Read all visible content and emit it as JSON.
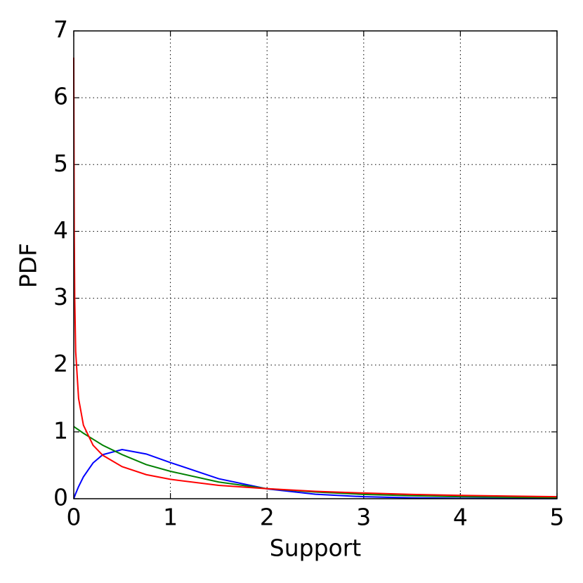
{
  "chart_data": {
    "type": "line",
    "x_label": "Support",
    "y_label": "PDF",
    "x": [
      0,
      0.005,
      0.01,
      0.02,
      0.05,
      0.1,
      0.2,
      0.3,
      0.5,
      0.75,
      1,
      1.5,
      2,
      2.5,
      3,
      3.5,
      4,
      4.5,
      5
    ],
    "series": [
      {
        "color": "#0000ff",
        "values": [
          0,
          0.0199,
          0.0392,
          0.0769,
          0.181,
          0.327,
          0.536,
          0.659,
          0.736,
          0.669,
          0.541,
          0.299,
          0.147,
          0.067,
          0.03,
          0.013,
          0.005,
          0.002,
          0.001
        ]
      },
      {
        "color": "#008000",
        "values": [
          1.08,
          1.075,
          1.07,
          1.06,
          1.03,
          0.98,
          0.89,
          0.8,
          0.66,
          0.51,
          0.41,
          0.25,
          0.15,
          0.1,
          0.065,
          0.045,
          0.03,
          0.022,
          0.016
        ]
      },
      {
        "color": "#ff0000",
        "values": [
          6.6,
          4.0,
          3.0,
          2.2,
          1.5,
          1.1,
          0.8,
          0.65,
          0.48,
          0.36,
          0.29,
          0.2,
          0.15,
          0.11,
          0.085,
          0.065,
          0.05,
          0.04,
          0.03
        ]
      }
    ],
    "xlim": [
      0,
      5
    ],
    "xticks": [
      0,
      1,
      2,
      3,
      4,
      5
    ],
    "ylim": [
      0,
      7
    ],
    "yticks": [
      0,
      1,
      2,
      3,
      4,
      5,
      6,
      7
    ],
    "grid": true
  }
}
